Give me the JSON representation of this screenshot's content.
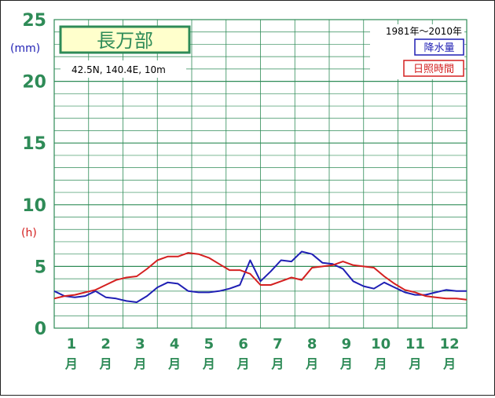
{
  "chart_data": {
    "type": "line",
    "title": "長万部",
    "location": "42.5N,  140.4E,  10m",
    "period": "1981年〜2010年",
    "units": {
      "precip": "(mm)",
      "sun": "(h)"
    },
    "y_ticks": [
      "0",
      "5",
      "10",
      "15",
      "20",
      "25"
    ],
    "ylim": [
      0,
      25
    ],
    "x_month_numbers": [
      "1",
      "2",
      "3",
      "4",
      "5",
      "6",
      "7",
      "8",
      "9",
      "10",
      "11",
      "12"
    ],
    "x_month_suffix": "月",
    "x": [
      0.0,
      0.3,
      0.6,
      0.9,
      1.2,
      1.5,
      1.8,
      2.1,
      2.4,
      2.7,
      3.0,
      3.3,
      3.6,
      3.9,
      4.2,
      4.5,
      4.8,
      5.1,
      5.4,
      5.7,
      6.0,
      6.3,
      6.6,
      6.9,
      7.2,
      7.5,
      7.8,
      8.1,
      8.4,
      8.7,
      9.0,
      9.3,
      9.6,
      9.9,
      10.2,
      10.5,
      10.8,
      11.1,
      11.4,
      11.7,
      12.0
    ],
    "series": [
      {
        "name": "降水量",
        "color": "#1f1fb4",
        "values": [
          3.0,
          2.6,
          2.5,
          2.6,
          3.0,
          2.5,
          2.4,
          2.2,
          2.1,
          2.6,
          3.3,
          3.7,
          3.6,
          3.0,
          2.9,
          2.9,
          3.0,
          3.2,
          3.5,
          5.5,
          3.8,
          4.6,
          5.5,
          5.4,
          6.2,
          6.0,
          5.3,
          5.2,
          4.8,
          3.8,
          3.4,
          3.2,
          3.7,
          3.3,
          2.9,
          2.7,
          2.7,
          2.9,
          3.1,
          3.0,
          3.0
        ]
      },
      {
        "name": "日照時間",
        "color": "#d42020",
        "values": [
          2.4,
          2.6,
          2.7,
          2.9,
          3.1,
          3.5,
          3.9,
          4.1,
          4.2,
          4.8,
          5.5,
          5.8,
          5.8,
          6.1,
          6.0,
          5.7,
          5.2,
          4.7,
          4.7,
          4.4,
          3.5,
          3.5,
          3.8,
          4.1,
          3.9,
          4.9,
          5.0,
          5.1,
          5.4,
          5.1,
          5.0,
          4.9,
          4.2,
          3.6,
          3.1,
          2.9,
          2.6,
          2.5,
          2.4,
          2.4,
          2.3
        ]
      }
    ],
    "grid": true,
    "legend": "top-right"
  }
}
